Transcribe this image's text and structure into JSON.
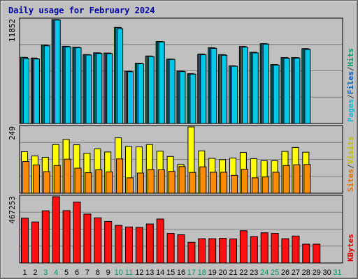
{
  "chart_data": {
    "type": "bar",
    "title": "Daily usage for February 2024",
    "days": [
      "1",
      "2",
      "3",
      "4",
      "5",
      "6",
      "7",
      "8",
      "9",
      "10",
      "11",
      "12",
      "13",
      "14",
      "15",
      "16",
      "17",
      "18",
      "19",
      "20",
      "21",
      "22",
      "23",
      "24",
      "25",
      "26",
      "27",
      "28",
      "29",
      "30",
      "31"
    ],
    "weekend_days": [
      "3",
      "4",
      "10",
      "11",
      "17",
      "18",
      "24",
      "25",
      "31"
    ],
    "panels": [
      {
        "id": "pages-files-hits",
        "max_label": "11852",
        "ymax": 11852,
        "right_label": [
          {
            "text": "Pages",
            "color": "#00c0d0"
          },
          {
            "text": "/",
            "color": "#404040"
          },
          {
            "text": "Files",
            "color": "#0060c0"
          },
          {
            "text": "/",
            "color": "#404040"
          },
          {
            "text": "Hits",
            "color": "#00a070"
          }
        ],
        "series": [
          {
            "name": "Hits",
            "color": "#008060",
            "values": [
              7540,
              7460,
              8940,
              11852,
              8800,
              8710,
              7860,
              8060,
              8030,
              10950,
              5950,
              6880,
              7690,
              9350,
              7350,
              5980,
              5670,
              7920,
              8650,
              7860,
              6580,
              8780,
              8120,
              9100,
              6720,
              7520,
              7520,
              8530,
              null,
              null,
              null
            ]
          },
          {
            "name": "Files",
            "color": "#2080c0",
            "values": [
              7520,
              7420,
              8900,
              11850,
              8790,
              8700,
              7850,
              8040,
              8020,
              10940,
              5940,
              6860,
              7680,
              9340,
              7340,
              5970,
              5660,
              7900,
              8630,
              7840,
              6570,
              8760,
              8110,
              9090,
              6710,
              7510,
              7510,
              8520,
              null,
              null,
              null
            ]
          },
          {
            "name": "Pages",
            "color": "#00c8e8",
            "values": [
              7400,
              7350,
              8850,
              11800,
              8740,
              8650,
              7800,
              7990,
              7960,
              10800,
              5900,
              6800,
              7640,
              9300,
              7300,
              5920,
              5620,
              7830,
              8560,
              7780,
              6520,
              8700,
              8050,
              9050,
              6660,
              7440,
              7450,
              8440,
              null,
              null,
              null
            ]
          }
        ]
      },
      {
        "id": "visits-sites",
        "max_label": "249",
        "ymax": 249,
        "right_label": [
          {
            "text": "Sites",
            "color": "#e07000"
          },
          {
            "text": "/",
            "color": "#404040"
          },
          {
            "text": "Visits",
            "color": "#c0c000"
          }
        ],
        "series": [
          {
            "name": "Visits",
            "color": "#ffff00",
            "values": [
              156,
              140,
              135,
              183,
              202,
              182,
              150,
              167,
              155,
              208,
              176,
              174,
              183,
              158,
              138,
              108,
              249,
              159,
              131,
              126,
              132,
              153,
              130,
              122,
              122,
              157,
              172,
              154,
              null,
              null,
              null
            ]
          },
          {
            "name": "Sites",
            "color": "#ff8c00",
            "values": [
              119,
              106,
              81,
              104,
              128,
              94,
              77,
              88,
              80,
              129,
              58,
              76,
              89,
              88,
              82,
              100,
              78,
              99,
              79,
              79,
              67,
              90,
              58,
              61,
              79,
              104,
              107,
              108,
              null,
              null,
              null
            ]
          }
        ]
      },
      {
        "id": "kbytes",
        "max_label": "467253",
        "ymax": 467253,
        "right_label": [
          {
            "text": "KBytes",
            "color": "#e00000"
          }
        ],
        "series": [
          {
            "name": "KBytes",
            "color": "#ff1010",
            "values": [
              316000,
              289000,
              368000,
              467253,
              369000,
              429000,
              345000,
              318000,
              293000,
              265000,
              254000,
              251000,
              275000,
              310000,
              209000,
              199000,
              146000,
              171000,
              171000,
              174000,
              169000,
              227000,
              186000,
              213000,
              209000,
              171000,
              190000,
              133000,
              133000,
              null,
              null
            ]
          }
        ]
      }
    ]
  }
}
